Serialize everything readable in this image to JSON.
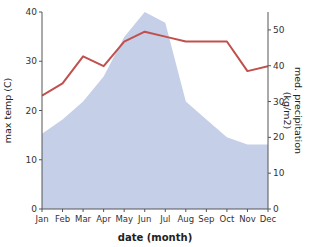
{
  "chart_data": {
    "type": "line",
    "categories": [
      "Jan",
      "Feb",
      "Mar",
      "Apr",
      "May",
      "Jun",
      "Jul",
      "Aug",
      "Sep",
      "Oct",
      "Nov",
      "Dec"
    ],
    "x_label": "date (month)",
    "y_label": "max temp (C)",
    "y2_label": "med. precipitation\n(kg/m2)",
    "ylim": [
      0,
      40
    ],
    "yticks": [
      0,
      10,
      20,
      30,
      40
    ],
    "y2lim": [
      0,
      55
    ],
    "y2ticks": [
      0,
      10,
      20,
      30,
      40,
      50
    ],
    "grid": false,
    "series": [
      {
        "type": "area",
        "axis": "y2",
        "color": "#c5cfe8",
        "values": [
          21,
          25,
          30,
          37,
          48,
          55,
          52,
          30,
          25,
          20,
          18,
          18
        ]
      },
      {
        "type": "line",
        "color": "#c0504d",
        "values": [
          23,
          25.5,
          31,
          29,
          34,
          36,
          35,
          34,
          34,
          34,
          28,
          29
        ]
      }
    ]
  }
}
